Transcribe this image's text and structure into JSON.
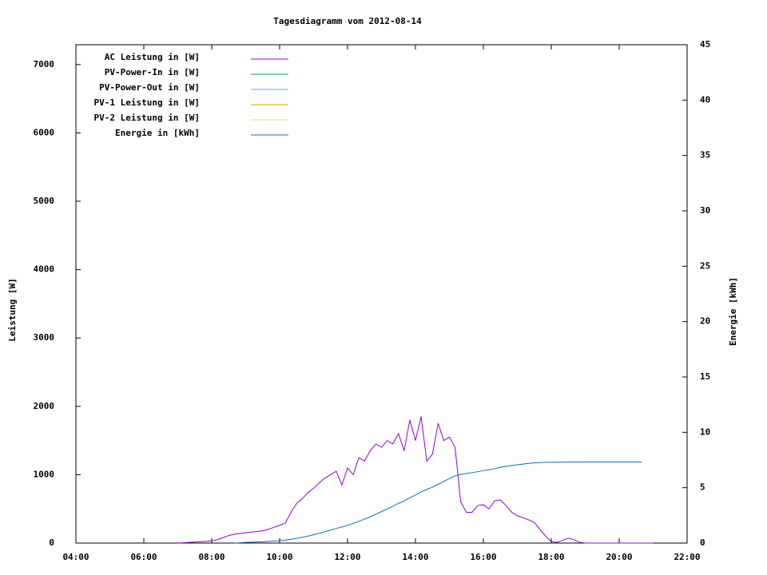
{
  "chart_data": {
    "type": "line",
    "title": "Tagesdiagramm vom 2012-08-14",
    "ylabel": "Leistung [W]",
    "y2label": "Energie [kWh]",
    "legend": "upper left",
    "grid": false,
    "x": [
      420,
      430,
      440,
      450,
      460,
      470,
      480,
      490,
      500,
      510,
      520,
      530,
      540,
      550,
      560,
      570,
      580,
      590,
      600,
      610,
      620,
      630,
      640,
      650,
      660,
      670,
      680,
      690,
      700,
      710,
      720,
      730,
      740,
      750,
      760,
      770,
      780,
      790,
      800,
      810,
      820,
      830,
      840,
      850,
      860,
      870,
      880,
      890,
      900,
      910,
      920,
      930,
      940,
      950,
      960,
      970,
      980,
      990,
      1000,
      1010,
      1020,
      1030,
      1040,
      1050,
      1060,
      1070,
      1080,
      1090,
      1100,
      1110,
      1120,
      1130,
      1140,
      1150,
      1160,
      1170,
      1180,
      1190,
      1200,
      1210,
      1220,
      1230,
      1240,
      1250,
      1260
    ],
    "xlim": [
      240,
      1320
    ],
    "xticks": [
      {
        "value": 240,
        "label": "04:00"
      },
      {
        "value": 360,
        "label": "06:00"
      },
      {
        "value": 480,
        "label": "08:00"
      },
      {
        "value": 600,
        "label": "10:00"
      },
      {
        "value": 720,
        "label": "12:00"
      },
      {
        "value": 840,
        "label": "14:00"
      },
      {
        "value": 960,
        "label": "16:00"
      },
      {
        "value": 1080,
        "label": "18:00"
      },
      {
        "value": 1200,
        "label": "20:00"
      },
      {
        "value": 1320,
        "label": "22:00"
      }
    ],
    "ylim": [
      0,
      7290
    ],
    "yticks": [
      0,
      1000,
      2000,
      3000,
      4000,
      5000,
      6000,
      7000
    ],
    "y2lim": [
      0,
      45
    ],
    "y2ticks": [
      0,
      5,
      10,
      15,
      20,
      25,
      30,
      35,
      40,
      45
    ],
    "series": [
      {
        "name": "AC Leistung in [W]",
        "color": "#9400d3",
        "values": [
          0,
          5,
          10,
          15,
          20,
          25,
          30,
          50,
          80,
          110,
          130,
          140,
          150,
          160,
          170,
          180,
          200,
          230,
          260,
          290,
          450,
          580,
          650,
          740,
          800,
          880,
          950,
          1000,
          1050,
          850,
          1100,
          1000,
          1250,
          1200,
          1350,
          1450,
          1400,
          1500,
          1450,
          1600,
          1350,
          1800,
          1500,
          1850,
          1200,
          1300,
          1750,
          1500,
          1550,
          1400,
          600,
          450,
          450,
          550,
          560,
          500,
          620,
          630,
          550,
          450,
          400,
          370,
          340,
          300,
          200,
          100,
          20,
          10,
          40,
          70,
          50,
          10,
          0,
          0,
          0,
          0,
          0,
          0,
          0,
          0,
          0,
          0,
          0,
          0,
          0
        ]
      },
      {
        "name": "PV-Power-In in [W]",
        "color": "#009e73",
        "values": [
          null,
          null,
          null,
          null,
          null,
          null,
          null,
          null,
          null,
          null,
          null,
          null,
          null,
          null,
          null,
          null,
          null,
          null,
          null,
          null,
          null,
          null,
          null,
          null,
          null,
          null,
          null,
          null,
          null,
          null,
          null,
          null,
          null,
          null,
          null,
          null,
          null,
          null,
          null,
          null,
          null,
          null,
          null,
          null,
          null,
          null,
          null,
          null,
          null,
          null,
          null,
          null,
          null,
          null,
          null,
          null,
          null,
          null,
          null,
          null,
          null,
          null,
          null,
          null,
          null,
          null,
          null,
          null,
          null,
          null,
          null,
          null,
          null,
          null,
          null,
          null,
          null,
          null,
          null,
          null,
          null,
          null,
          null,
          null,
          null
        ]
      },
      {
        "name": "PV-Power-Out in [W]",
        "color": "#56b4e9",
        "values": [
          null,
          null,
          null,
          null,
          null,
          null,
          null,
          null,
          null,
          null,
          null,
          null,
          null,
          null,
          null,
          null,
          null,
          null,
          null,
          null,
          null,
          null,
          null,
          null,
          null,
          null,
          null,
          null,
          null,
          null,
          null,
          null,
          null,
          null,
          null,
          null,
          null,
          null,
          null,
          null,
          null,
          null,
          null,
          null,
          null,
          null,
          null,
          null,
          null,
          null,
          null,
          null,
          null,
          null,
          null,
          null,
          null,
          null,
          null,
          null,
          null,
          null,
          null,
          null,
          null,
          null,
          null,
          null,
          null,
          null,
          null,
          null,
          null,
          null,
          null,
          null,
          null,
          null,
          null,
          null,
          null,
          null,
          null,
          null,
          null
        ]
      },
      {
        "name": "PV-1 Leistung in [W]",
        "color": "#e69f00",
        "values": [
          null,
          null,
          null,
          null,
          null,
          null,
          null,
          null,
          null,
          null,
          null,
          null,
          null,
          null,
          null,
          null,
          null,
          null,
          null,
          null,
          null,
          null,
          null,
          null,
          null,
          null,
          null,
          null,
          null,
          null,
          null,
          null,
          null,
          null,
          null,
          null,
          null,
          null,
          null,
          null,
          null,
          null,
          null,
          null,
          null,
          null,
          null,
          null,
          null,
          null,
          null,
          null,
          null,
          null,
          null,
          null,
          null,
          null,
          null,
          null,
          null,
          null,
          null,
          null,
          null,
          null,
          null,
          null,
          null,
          null,
          null,
          null,
          null,
          null,
          null,
          null,
          null,
          null,
          null,
          null,
          null,
          null,
          null,
          null,
          null
        ]
      },
      {
        "name": "PV-2 Leistung in [W]",
        "color": "#f0e442",
        "values": [
          null,
          null,
          null,
          null,
          null,
          null,
          null,
          null,
          null,
          null,
          null,
          null,
          null,
          null,
          null,
          null,
          null,
          null,
          null,
          null,
          null,
          null,
          null,
          null,
          null,
          null,
          null,
          null,
          null,
          null,
          null,
          null,
          null,
          null,
          null,
          null,
          null,
          null,
          null,
          null,
          null,
          null,
          null,
          null,
          null,
          null,
          null,
          null,
          null,
          null,
          null,
          null,
          null,
          null,
          null,
          null,
          null,
          null,
          null,
          null,
          null,
          null,
          null,
          null,
          null,
          null,
          null,
          null,
          null,
          null,
          null,
          null,
          null,
          null,
          null,
          null,
          null,
          null,
          null,
          null,
          null,
          null,
          null,
          null,
          null
        ]
      },
      {
        "name": "Energie in [kWh]",
        "color": "#0072b2",
        "axis": "y2",
        "values": [
          null,
          null,
          null,
          null,
          null,
          null,
          null,
          null,
          null,
          null,
          0,
          0.03,
          0.06,
          0.08,
          0.1,
          0.12,
          0.15,
          0.18,
          0.22,
          0.27,
          0.34,
          0.42,
          0.52,
          0.63,
          0.75,
          0.88,
          1.02,
          1.17,
          1.32,
          1.45,
          1.6,
          1.78,
          1.96,
          2.16,
          2.37,
          2.6,
          2.84,
          3.08,
          3.32,
          3.58,
          3.8,
          4.08,
          4.33,
          4.62,
          4.84,
          5.05,
          5.3,
          5.57,
          5.83,
          6.07,
          6.2,
          6.28,
          6.36,
          6.45,
          6.54,
          6.62,
          6.72,
          6.83,
          6.92,
          7.0,
          7.07,
          7.13,
          7.19,
          7.24,
          7.27,
          7.29,
          7.29,
          7.3,
          7.31,
          7.31,
          7.32,
          7.32,
          7.33,
          7.33,
          7.33,
          7.33,
          7.33,
          7.33,
          7.33,
          7.33,
          7.33,
          7.33,
          7.33,
          null,
          null
        ]
      }
    ]
  }
}
